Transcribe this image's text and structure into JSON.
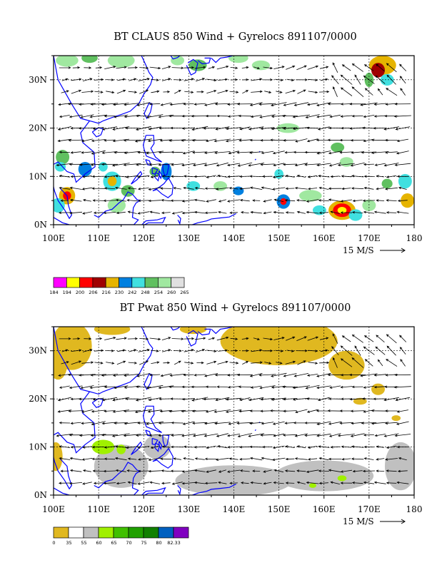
{
  "panels": [
    {
      "title": "BT CLAUS 850 Wind + Gyrelocs 891107/0000",
      "x_ticks": [
        "100E",
        "110E",
        "120E",
        "130E",
        "140E",
        "150E",
        "160E",
        "170E",
        "180"
      ],
      "y_ticks": [
        "0N",
        "10N",
        "20N",
        "30N"
      ],
      "scale_label": "15 M/S",
      "legend_colors": [
        "#ff00ff",
        "#ffff00",
        "#ff0000",
        "#a00000",
        "#e6b400",
        "#0080e0",
        "#40e0e0",
        "#60c060",
        "#a0e8a0",
        "#e0e0e0"
      ],
      "legend_labels": [
        "184",
        "194",
        "200",
        "206",
        "216",
        "230",
        "242",
        "248",
        "254",
        "260",
        "265"
      ]
    },
    {
      "title": "BT Pwat 850 Wind + Gyrelocs 891107/0000",
      "x_ticks": [
        "100E",
        "110E",
        "120E",
        "130E",
        "140E",
        "150E",
        "160E",
        "170E",
        "180"
      ],
      "y_ticks": [
        "0N",
        "10N",
        "20N",
        "30N"
      ],
      "scale_label": "15 M/S",
      "legend_colors": [
        "#e0b820",
        "#ffffff",
        "#c0c0c0",
        "#a0f000",
        "#40c000",
        "#20a000",
        "#108000",
        "#0060c0",
        "#8000c0"
      ],
      "legend_labels": [
        "0",
        "35",
        "55",
        "60",
        "65",
        "70",
        "75",
        "80",
        "82.33"
      ]
    }
  ],
  "colors": {
    "coast": "#0000ff",
    "grid": "#000000"
  }
}
